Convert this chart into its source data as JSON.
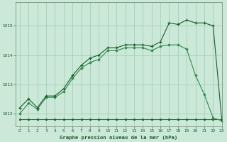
{
  "title": "Graphe pression niveau de la mer (hPa)",
  "background_color": "#cce8d8",
  "grid_color": "#99ccb0",
  "line_color_dark": "#1a5c2a",
  "line_color_mid": "#2d8c4e",
  "xlim": [
    -0.5,
    23
  ],
  "ylim": [
    1011.55,
    1015.8
  ],
  "yticks": [
    1012,
    1013,
    1014,
    1015
  ],
  "xticks": [
    0,
    1,
    2,
    3,
    4,
    5,
    6,
    7,
    8,
    9,
    10,
    11,
    12,
    13,
    14,
    15,
    16,
    17,
    18,
    19,
    20,
    21,
    22,
    23
  ],
  "series1_x": [
    0,
    1,
    2,
    3,
    4,
    5,
    6,
    7,
    8,
    9,
    10,
    11,
    12,
    13,
    14,
    15,
    16,
    17,
    18,
    19,
    20,
    21,
    22,
    23
  ],
  "series1_y": [
    1011.8,
    1011.8,
    1011.8,
    1011.8,
    1011.8,
    1011.8,
    1011.8,
    1011.8,
    1011.8,
    1011.8,
    1011.8,
    1011.8,
    1011.8,
    1011.8,
    1011.8,
    1011.8,
    1011.8,
    1011.8,
    1011.8,
    1011.8,
    1011.8,
    1011.8,
    1011.8,
    1011.8
  ],
  "series2_x": [
    0,
    1,
    2,
    3,
    4,
    5,
    6,
    7,
    8,
    9,
    10,
    11,
    12,
    13,
    14,
    15,
    16,
    17,
    18,
    19,
    20,
    21,
    22,
    23
  ],
  "series2_y": [
    1012.0,
    1012.35,
    1012.15,
    1012.55,
    1012.55,
    1012.75,
    1013.2,
    1013.55,
    1013.75,
    1013.85,
    1014.15,
    1014.15,
    1014.25,
    1014.25,
    1014.25,
    1014.15,
    1014.3,
    1014.35,
    1014.35,
    1014.2,
    1013.3,
    1012.65,
    1011.85,
    1011.75
  ],
  "series3_x": [
    0,
    1,
    2,
    3,
    4,
    5,
    6,
    7,
    8,
    9,
    10,
    11,
    12,
    13,
    14,
    15,
    16,
    17,
    18,
    19,
    20,
    21,
    22,
    23
  ],
  "series3_y": [
    1012.2,
    1012.5,
    1012.2,
    1012.6,
    1012.6,
    1012.85,
    1013.3,
    1013.65,
    1013.9,
    1014.0,
    1014.25,
    1014.25,
    1014.35,
    1014.35,
    1014.35,
    1014.3,
    1014.45,
    1015.1,
    1015.05,
    1015.2,
    1015.1,
    1015.1,
    1015.0,
    1011.75
  ]
}
